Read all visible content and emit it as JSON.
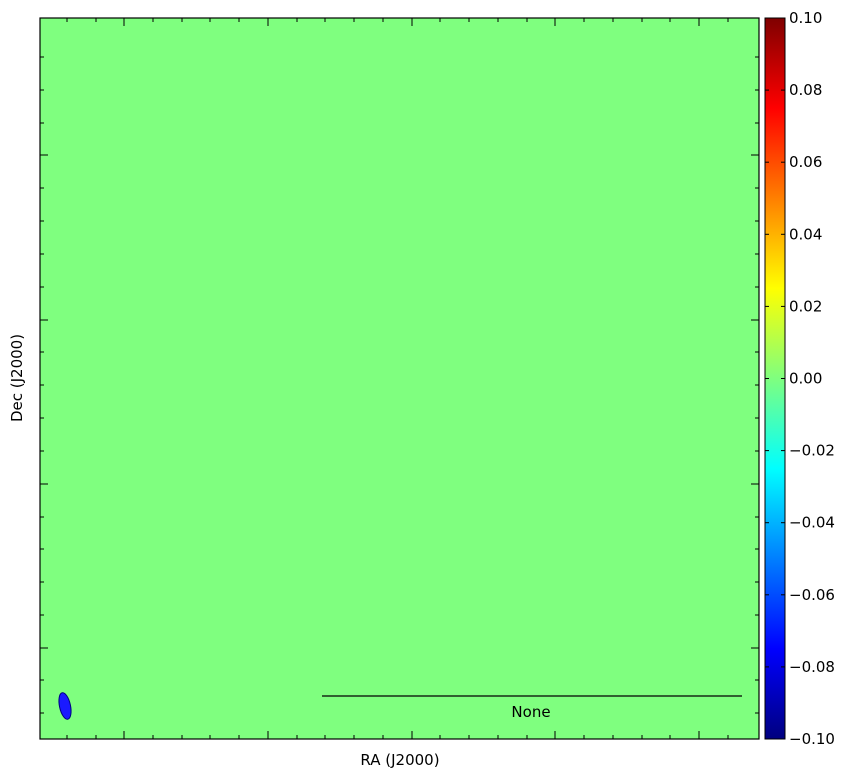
{
  "chart_data": {
    "type": "heatmap",
    "xlabel": "RA (J2000)",
    "ylabel": "Dec (J2000)",
    "image_value": 0.0,
    "fill_color": "#7fff7f",
    "colorbar": {
      "colormap": "jet",
      "min": -0.1,
      "max": 0.1,
      "ticks": [
        "0.10",
        "0.08",
        "0.06",
        "0.04",
        "0.02",
        "0.00",
        "−0.02",
        "−0.04",
        "−0.06",
        "−0.08",
        "−0.10"
      ],
      "colors": [
        "#00007f",
        "#0000ff",
        "#007fff",
        "#00ffff",
        "#7fff7f",
        "#ffff00",
        "#ff7f00",
        "#ff0000",
        "#7f0000"
      ]
    },
    "scalebar_label": "None",
    "beam": {
      "color": "#1a1aff",
      "edge_color": "#00007f",
      "placement": "bottom-left"
    }
  }
}
